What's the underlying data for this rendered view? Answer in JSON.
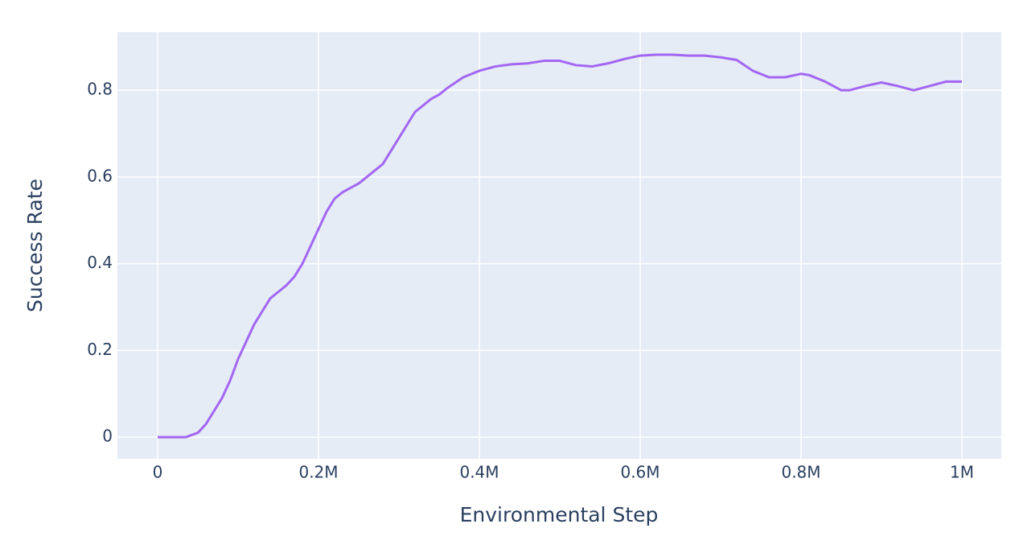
{
  "chart_data": {
    "type": "line",
    "x_label": "Environmental Step",
    "y_label": "Success Rate",
    "x": [
      0,
      35000,
      50000,
      60000,
      70000,
      80000,
      90000,
      100000,
      110000,
      120000,
      130000,
      140000,
      150000,
      160000,
      170000,
      180000,
      190000,
      200000,
      210000,
      220000,
      230000,
      240000,
      250000,
      260000,
      270000,
      280000,
      290000,
      300000,
      310000,
      320000,
      330000,
      340000,
      350000,
      360000,
      380000,
      400000,
      420000,
      440000,
      460000,
      480000,
      500000,
      520000,
      540000,
      560000,
      580000,
      600000,
      620000,
      640000,
      660000,
      680000,
      700000,
      720000,
      740000,
      760000,
      780000,
      800000,
      810000,
      830000,
      850000,
      860000,
      880000,
      900000,
      920000,
      940000,
      960000,
      980000,
      1000000
    ],
    "series": [
      {
        "color": "#a366f2",
        "values": [
          0,
          0,
          0.01,
          0.03,
          0.06,
          0.09,
          0.13,
          0.18,
          0.22,
          0.26,
          0.29,
          0.32,
          0.335,
          0.35,
          0.37,
          0.4,
          0.44,
          0.48,
          0.52,
          0.55,
          0.565,
          0.575,
          0.585,
          0.6,
          0.615,
          0.63,
          0.66,
          0.69,
          0.72,
          0.75,
          0.765,
          0.78,
          0.79,
          0.805,
          0.83,
          0.845,
          0.855,
          0.86,
          0.862,
          0.868,
          0.868,
          0.858,
          0.855,
          0.862,
          0.872,
          0.88,
          0.882,
          0.882,
          0.88,
          0.88,
          0.876,
          0.87,
          0.845,
          0.83,
          0.83,
          0.838,
          0.835,
          0.82,
          0.8,
          0.8,
          0.81,
          0.818,
          0.81,
          0.8,
          0.81,
          0.82,
          0.82
        ]
      }
    ],
    "xlim": [
      -50000,
      1049000
    ],
    "xticks": [
      0,
      {
        "value": 200000,
        "label": "0.2M"
      },
      {
        "value": 400000,
        "label": "0.4M"
      },
      {
        "value": 600000,
        "label": "0.6M"
      },
      {
        "value": 800000,
        "label": "0.8M"
      },
      {
        "value": 1000000,
        "label": "1M"
      }
    ],
    "ylim": [
      -0.05,
      0.934
    ],
    "yticks": [
      0,
      0.2,
      0.4,
      0.6,
      0.8
    ],
    "grid": true
  }
}
